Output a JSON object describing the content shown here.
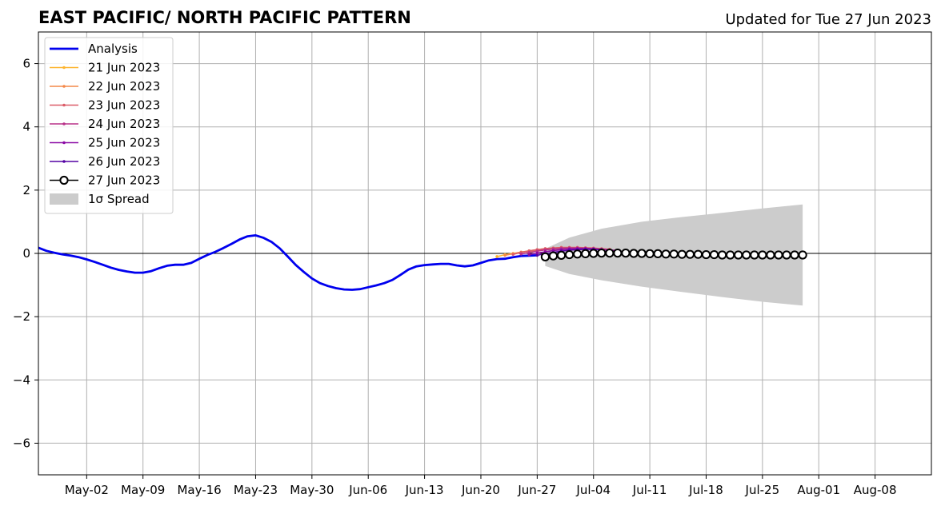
{
  "chart_data": {
    "type": "line",
    "title": "EAST PACIFIC/ NORTH PACIFIC PATTERN",
    "subtitle": "Updated for Tue 27 Jun 2023",
    "xlim": [
      "2023-04-26",
      "2023-08-15"
    ],
    "ylim": [
      -7,
      7
    ],
    "x_tick_labels": [
      "May-02",
      "May-09",
      "May-16",
      "May-23",
      "May-30",
      "Jun-06",
      "Jun-13",
      "Jun-20",
      "Jun-27",
      "Jul-04",
      "Jul-11",
      "Jul-18",
      "Jul-25",
      "Aug-01",
      "Aug-08"
    ],
    "y_ticks": [
      -6,
      -4,
      -2,
      0,
      2,
      4,
      6
    ],
    "y_tick_labels": [
      "−6",
      "−4",
      "−2",
      "0",
      "2",
      "4",
      "6"
    ],
    "grid": true,
    "legend_position": "top-left",
    "analysis": {
      "name": "Analysis",
      "color": "#0000ee",
      "points": [
        [
          "2023-04-26",
          0.18
        ],
        [
          "2023-04-27",
          0.08
        ],
        [
          "2023-04-28",
          0.02
        ],
        [
          "2023-04-29",
          -0.03
        ],
        [
          "2023-04-30",
          -0.07
        ],
        [
          "2023-05-01",
          -0.12
        ],
        [
          "2023-05-02",
          -0.19
        ],
        [
          "2023-05-03",
          -0.27
        ],
        [
          "2023-05-04",
          -0.36
        ],
        [
          "2023-05-05",
          -0.45
        ],
        [
          "2023-05-06",
          -0.52
        ],
        [
          "2023-05-07",
          -0.57
        ],
        [
          "2023-05-08",
          -0.61
        ],
        [
          "2023-05-09",
          -0.61
        ],
        [
          "2023-05-10",
          -0.56
        ],
        [
          "2023-05-11",
          -0.47
        ],
        [
          "2023-05-12",
          -0.39
        ],
        [
          "2023-05-13",
          -0.36
        ],
        [
          "2023-05-14",
          -0.36
        ],
        [
          "2023-05-15",
          -0.3
        ],
        [
          "2023-05-16",
          -0.17
        ],
        [
          "2023-05-17",
          -0.05
        ],
        [
          "2023-05-18",
          0.05
        ],
        [
          "2023-05-19",
          0.17
        ],
        [
          "2023-05-20",
          0.3
        ],
        [
          "2023-05-21",
          0.44
        ],
        [
          "2023-05-22",
          0.54
        ],
        [
          "2023-05-23",
          0.57
        ],
        [
          "2023-05-24",
          0.49
        ],
        [
          "2023-05-25",
          0.36
        ],
        [
          "2023-05-26",
          0.16
        ],
        [
          "2023-05-27",
          -0.1
        ],
        [
          "2023-05-28",
          -0.37
        ],
        [
          "2023-05-29",
          -0.59
        ],
        [
          "2023-05-30",
          -0.79
        ],
        [
          "2023-05-31",
          -0.94
        ],
        [
          "2023-06-01",
          -1.03
        ],
        [
          "2023-06-02",
          -1.1
        ],
        [
          "2023-06-03",
          -1.14
        ],
        [
          "2023-06-04",
          -1.15
        ],
        [
          "2023-06-05",
          -1.13
        ],
        [
          "2023-06-06",
          -1.07
        ],
        [
          "2023-06-07",
          -1.01
        ],
        [
          "2023-06-08",
          -0.94
        ],
        [
          "2023-06-09",
          -0.84
        ],
        [
          "2023-06-10",
          -0.68
        ],
        [
          "2023-06-11",
          -0.51
        ],
        [
          "2023-06-12",
          -0.41
        ],
        [
          "2023-06-13",
          -0.37
        ],
        [
          "2023-06-14",
          -0.35
        ],
        [
          "2023-06-15",
          -0.33
        ],
        [
          "2023-06-16",
          -0.33
        ],
        [
          "2023-06-17",
          -0.38
        ],
        [
          "2023-06-18",
          -0.41
        ],
        [
          "2023-06-19",
          -0.38
        ],
        [
          "2023-06-20",
          -0.3
        ],
        [
          "2023-06-21",
          -0.22
        ],
        [
          "2023-06-22",
          -0.18
        ],
        [
          "2023-06-23",
          -0.17
        ],
        [
          "2023-06-24",
          -0.12
        ],
        [
          "2023-06-25",
          -0.08
        ],
        [
          "2023-06-26",
          -0.07
        ],
        [
          "2023-06-27",
          -0.06
        ]
      ]
    },
    "forecasts": [
      {
        "name": "21 Jun 2023",
        "color": "#fdb42f",
        "start": "2023-06-22",
        "values": [
          -0.1,
          -0.04,
          0.0,
          0.04,
          0.07,
          0.1,
          0.12,
          0.14,
          0.15,
          0.16,
          0.16
        ]
      },
      {
        "name": "22 Jun 2023",
        "color": "#f48849",
        "start": "2023-06-23",
        "values": [
          -0.06,
          -0.01,
          0.04,
          0.08,
          0.12,
          0.15,
          0.17,
          0.18,
          0.18,
          0.18,
          0.17,
          0.16
        ]
      },
      {
        "name": "23 Jun 2023",
        "color": "#db5c68",
        "start": "2023-06-24",
        "values": [
          -0.03,
          0.03,
          0.08,
          0.12,
          0.15,
          0.17,
          0.19,
          0.19,
          0.19,
          0.18,
          0.17,
          0.15,
          0.13
        ]
      },
      {
        "name": "24 Jun 2023",
        "color": "#b83289",
        "start": "2023-06-25",
        "values": [
          -0.02,
          0.03,
          0.07,
          0.11,
          0.14,
          0.16,
          0.17,
          0.17,
          0.16,
          0.15,
          0.13,
          0.11,
          0.09
        ]
      },
      {
        "name": "25 Jun 2023",
        "color": "#8b0aa5",
        "start": "2023-06-26",
        "values": [
          -0.04,
          0.01,
          0.05,
          0.09,
          0.12,
          0.14,
          0.15,
          0.15,
          0.14,
          0.12,
          0.1,
          0.08
        ]
      },
      {
        "name": "26 Jun 2023",
        "color": "#5302a3",
        "start": "2023-06-27",
        "values": [
          -0.06,
          -0.01,
          0.03,
          0.07,
          0.1,
          0.12,
          0.13,
          0.13,
          0.12
        ]
      }
    ],
    "forecast": {
      "name": "27 Jun 2023",
      "color": "#000000",
      "start": "2023-06-28",
      "values": [
        -0.11,
        -0.08,
        -0.06,
        -0.04,
        -0.02,
        -0.01,
        0.0,
        0.01,
        0.01,
        0.01,
        0.01,
        0.0,
        0.0,
        -0.01,
        -0.01,
        -0.02,
        -0.02,
        -0.03,
        -0.03,
        -0.03,
        -0.04,
        -0.04,
        -0.05,
        -0.05,
        -0.05,
        -0.05,
        -0.05,
        -0.05,
        -0.05,
        -0.05,
        -0.05,
        -0.05,
        -0.05
      ]
    },
    "spread": {
      "name": "1σ Spread",
      "color": "#cccccc",
      "points": [
        [
          "2023-06-28",
          0.15,
          -0.4
        ],
        [
          "2023-07-01",
          0.5,
          -0.65
        ],
        [
          "2023-07-05",
          0.78,
          -0.85
        ],
        [
          "2023-07-10",
          1.0,
          -1.05
        ],
        [
          "2023-07-15",
          1.15,
          -1.22
        ],
        [
          "2023-07-20",
          1.28,
          -1.38
        ],
        [
          "2023-07-25",
          1.42,
          -1.53
        ],
        [
          "2023-07-30",
          1.55,
          -1.65
        ]
      ]
    },
    "legend": {
      "analysis_label": "Analysis",
      "spread_label": "1σ Spread"
    }
  }
}
